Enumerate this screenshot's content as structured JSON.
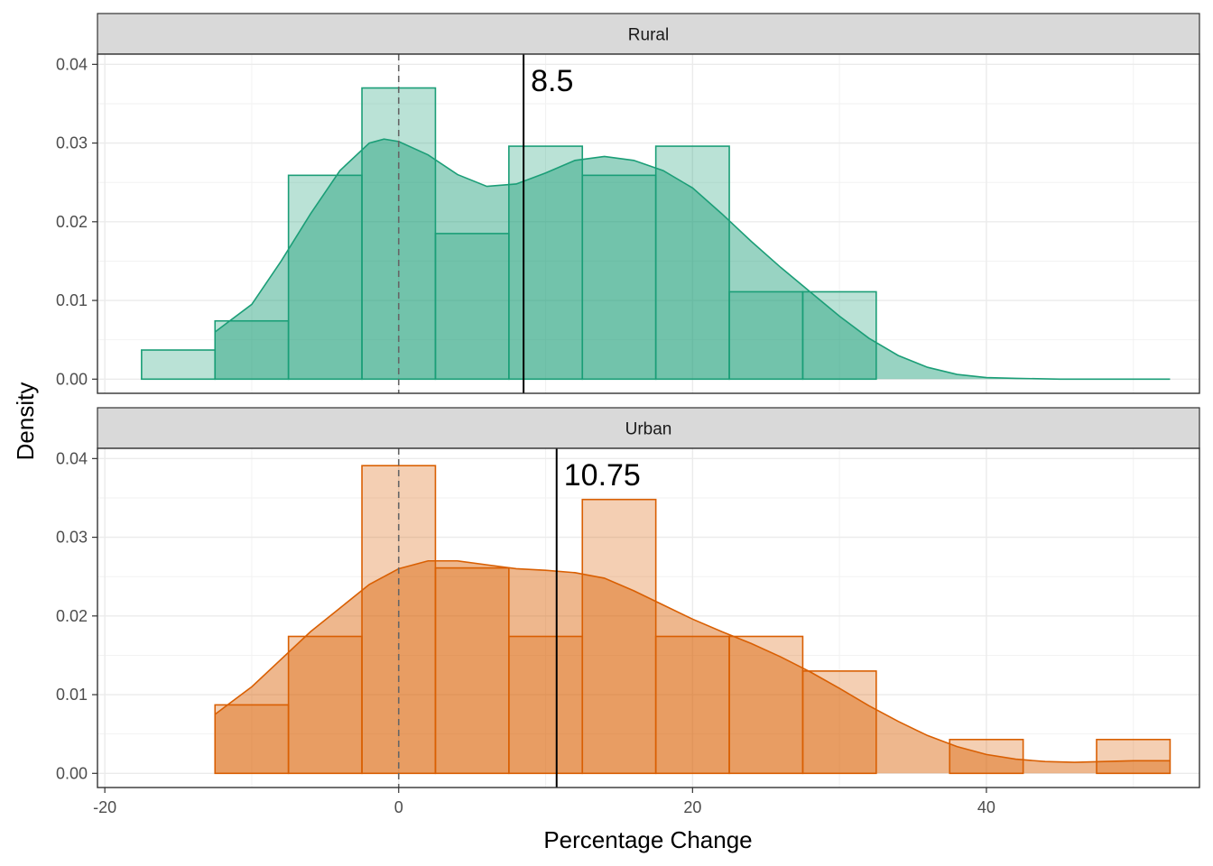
{
  "chart_data": {
    "type": "histogram-density",
    "xlabel": "Percentage Change",
    "ylabel": "Density",
    "xlim": [
      -20.5,
      54.5
    ],
    "ylim": [
      -0.0018,
      0.0413
    ],
    "x_ticks": [
      -20,
      0,
      20,
      40
    ],
    "x_tick_labels": [
      "-20",
      "0",
      "20",
      "40"
    ],
    "y_ticks": [
      0,
      0.01,
      0.02,
      0.03,
      0.04
    ],
    "y_tick_labels": [
      "0.00",
      "0.01",
      "0.02",
      "0.03",
      "0.04"
    ],
    "reference_line_x": 0,
    "bin_width": 5,
    "panels": [
      {
        "name": "Rural",
        "color": "#1b9e77",
        "mean": 8.5,
        "mean_label": "8.5",
        "histogram": {
          "bin_centers": [
            -15,
            -10,
            -5,
            0,
            5,
            10,
            15,
            20,
            25,
            30
          ],
          "density": [
            0.0037,
            0.0074,
            0.0259,
            0.037,
            0.0185,
            0.0296,
            0.0259,
            0.0296,
            0.0111,
            0.0111
          ]
        },
        "density_curve": {
          "x": [
            -12.5,
            -10,
            -8,
            -6,
            -4,
            -2,
            -1,
            0,
            2,
            4,
            6,
            8,
            10,
            12,
            14,
            16,
            18,
            20,
            22,
            24,
            26,
            28,
            30,
            32,
            34,
            36,
            38,
            40,
            42,
            45,
            48,
            52.5
          ],
          "y": [
            0.006,
            0.0095,
            0.015,
            0.021,
            0.0265,
            0.03,
            0.0305,
            0.0302,
            0.0285,
            0.026,
            0.0245,
            0.0248,
            0.0262,
            0.0278,
            0.0283,
            0.0278,
            0.0265,
            0.0243,
            0.021,
            0.0175,
            0.0142,
            0.0111,
            0.008,
            0.0052,
            0.003,
            0.0015,
            0.0006,
            0.0002,
            0.0001,
            0.0,
            0.0,
            0.0
          ]
        }
      },
      {
        "name": "Urban",
        "color": "#d95f02",
        "mean": 10.75,
        "mean_label": "10.75",
        "histogram": {
          "bin_centers": [
            -15,
            -10,
            -5,
            0,
            5,
            10,
            15,
            20,
            25,
            30,
            35,
            40,
            45,
            50
          ],
          "density": [
            0.0,
            0.0087,
            0.0174,
            0.0391,
            0.0261,
            0.0174,
            0.0348,
            0.0174,
            0.0174,
            0.013,
            0.0,
            0.0043,
            0.0,
            0.0043
          ]
        },
        "density_curve": {
          "x": [
            -12.5,
            -10,
            -8,
            -6,
            -4,
            -2,
            0,
            2,
            4,
            6,
            8,
            10,
            12,
            14,
            16,
            18,
            20,
            22,
            24,
            26,
            28,
            30,
            32,
            34,
            36,
            38,
            40,
            42,
            44,
            46,
            48,
            50,
            52.5
          ],
          "y": [
            0.0075,
            0.011,
            0.0145,
            0.018,
            0.021,
            0.024,
            0.026,
            0.027,
            0.027,
            0.0265,
            0.026,
            0.0258,
            0.0255,
            0.0248,
            0.0232,
            0.0214,
            0.0196,
            0.018,
            0.0165,
            0.0148,
            0.0129,
            0.0108,
            0.0086,
            0.0066,
            0.0048,
            0.0034,
            0.0024,
            0.0018,
            0.0015,
            0.0014,
            0.0015,
            0.0016,
            0.0016
          ]
        }
      }
    ]
  }
}
